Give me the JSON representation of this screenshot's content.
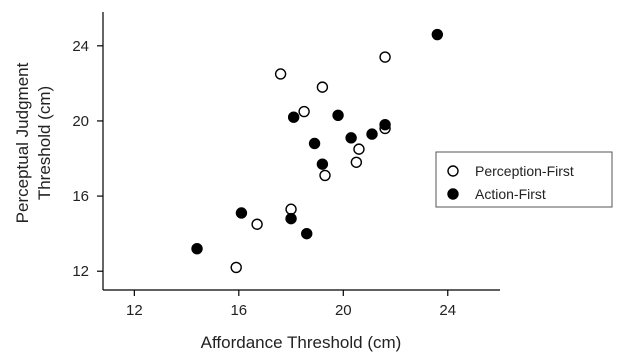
{
  "chart_data": {
    "type": "scatter",
    "xlabel": "Affordance Threshold (cm)",
    "ylabel_lines": [
      "Perceptual Judgment",
      "Threshold (cm)"
    ],
    "xlim": [
      10.8,
      26
    ],
    "ylim": [
      11,
      25.8
    ],
    "xticks": [
      12,
      16,
      20,
      24
    ],
    "yticks": [
      12,
      16,
      20,
      24
    ],
    "grid": false,
    "legend_position": "right",
    "series": [
      {
        "name": "Perception-First",
        "marker": "open-circle",
        "color": "#000000",
        "points": [
          {
            "x": 15.9,
            "y": 12.2
          },
          {
            "x": 16.7,
            "y": 14.5
          },
          {
            "x": 18.0,
            "y": 15.3
          },
          {
            "x": 17.6,
            "y": 22.5
          },
          {
            "x": 18.5,
            "y": 20.5
          },
          {
            "x": 19.2,
            "y": 21.8
          },
          {
            "x": 19.3,
            "y": 17.1
          },
          {
            "x": 20.6,
            "y": 18.5
          },
          {
            "x": 20.5,
            "y": 17.8
          },
          {
            "x": 21.6,
            "y": 23.4
          },
          {
            "x": 21.6,
            "y": 19.6
          }
        ]
      },
      {
        "name": "Action-First",
        "marker": "filled-circle",
        "color": "#000000",
        "points": [
          {
            "x": 14.4,
            "y": 13.2
          },
          {
            "x": 16.1,
            "y": 15.1
          },
          {
            "x": 18.0,
            "y": 14.8
          },
          {
            "x": 18.6,
            "y": 14.0
          },
          {
            "x": 18.1,
            "y": 20.2
          },
          {
            "x": 18.9,
            "y": 18.8
          },
          {
            "x": 19.2,
            "y": 17.7
          },
          {
            "x": 19.8,
            "y": 20.3
          },
          {
            "x": 20.3,
            "y": 19.1
          },
          {
            "x": 21.1,
            "y": 19.3
          },
          {
            "x": 21.6,
            "y": 19.8
          },
          {
            "x": 23.6,
            "y": 24.6
          }
        ]
      }
    ]
  }
}
